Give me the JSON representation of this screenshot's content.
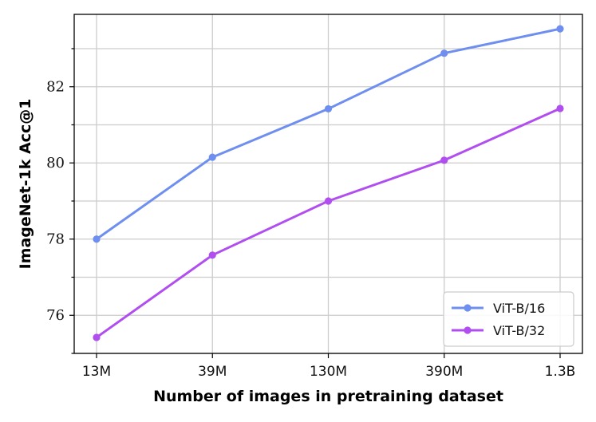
{
  "chart_data": {
    "type": "line",
    "title": "",
    "xlabel": "Number of images in pretraining dataset",
    "ylabel": "ImageNet-1k Acc@1",
    "categories": [
      "13M",
      "39M",
      "130M",
      "390M",
      "1.3B"
    ],
    "ylim": [
      75.0,
      83.9
    ],
    "yticks": [
      76,
      78,
      80,
      82
    ],
    "grid": true,
    "legend_position": "bottom-right",
    "series": [
      {
        "name": "ViT-B/16",
        "color": "#6f8ff0",
        "values": [
          78.0,
          80.15,
          81.42,
          82.88,
          83.52
        ]
      },
      {
        "name": "ViT-B/32",
        "color": "#b04ef0",
        "values": [
          75.42,
          77.58,
          79.0,
          80.07,
          81.43
        ]
      }
    ]
  }
}
